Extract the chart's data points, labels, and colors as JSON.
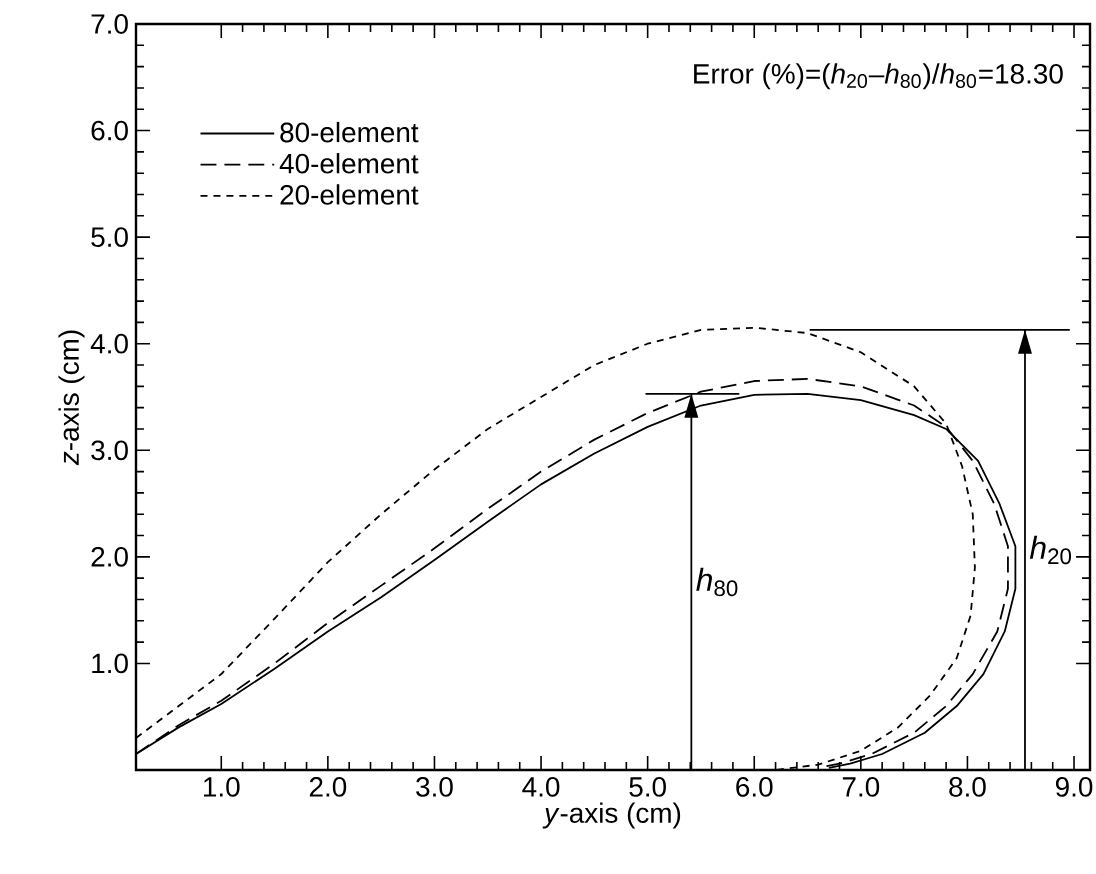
{
  "chart_data": {
    "type": "line",
    "xlabel": "*y*-axis (cm)",
    "ylabel": "*z*-axis (cm)",
    "xlim": [
      0.2,
      9.15
    ],
    "ylim": [
      0,
      7.0
    ],
    "xticks": [
      {
        "value": 1,
        "label": "1.0"
      },
      {
        "value": 2,
        "label": "2.0"
      },
      {
        "value": 3,
        "label": "3.0"
      },
      {
        "value": 4,
        "label": "4.0"
      },
      {
        "value": 5,
        "label": "5.0"
      },
      {
        "value": 6,
        "label": "6.0"
      },
      {
        "value": 7,
        "label": "7.0"
      },
      {
        "value": 8,
        "label": "8.0"
      },
      {
        "value": 9,
        "label": "9.0"
      }
    ],
    "yticks": [
      {
        "value": 1,
        "label": "1.0"
      },
      {
        "value": 2,
        "label": "2.0"
      },
      {
        "value": 3,
        "label": "3.0"
      },
      {
        "value": 4,
        "label": "4.0"
      },
      {
        "value": 5,
        "label": "5.0"
      },
      {
        "value": 6,
        "label": "6.0"
      },
      {
        "value": 7,
        "label": "7.0"
      }
    ],
    "legend": "top left",
    "marker": "none",
    "series": [
      {
        "name": "80-element",
        "color": "#000000",
        "line_style": "solid",
        "x": [
          0.2,
          0.6,
          1.0,
          1.5,
          2.0,
          2.5,
          3.0,
          3.5,
          4.0,
          4.5,
          5.0,
          5.5,
          6.0,
          6.5,
          7.0,
          7.5,
          7.8,
          8.1,
          8.3,
          8.45,
          8.45,
          8.35,
          8.15,
          7.9,
          7.6,
          7.2,
          6.9,
          6.7
        ],
        "values": [
          0.15,
          0.4,
          0.62,
          0.95,
          1.3,
          1.62,
          1.97,
          2.33,
          2.68,
          2.97,
          3.22,
          3.42,
          3.52,
          3.53,
          3.47,
          3.33,
          3.2,
          2.9,
          2.5,
          2.1,
          1.7,
          1.3,
          0.9,
          0.6,
          0.35,
          0.15,
          0.06,
          0.02
        ]
      },
      {
        "name": "40-element",
        "color": "#000000",
        "line_style": "dashed",
        "x": [
          0.2,
          0.6,
          1.0,
          1.5,
          2.0,
          2.5,
          3.0,
          3.5,
          4.0,
          4.5,
          5.0,
          5.5,
          6.0,
          6.5,
          7.0,
          7.5,
          7.8,
          8.05,
          8.25,
          8.38,
          8.38,
          8.28,
          8.05,
          7.8,
          7.5,
          7.1,
          6.8,
          6.6
        ],
        "values": [
          0.15,
          0.42,
          0.65,
          1.0,
          1.38,
          1.73,
          2.08,
          2.45,
          2.8,
          3.1,
          3.35,
          3.55,
          3.65,
          3.67,
          3.6,
          3.42,
          3.22,
          2.9,
          2.5,
          2.1,
          1.7,
          1.3,
          0.9,
          0.6,
          0.35,
          0.15,
          0.06,
          0.02
        ]
      },
      {
        "name": "20-element",
        "color": "#000000",
        "line_style": "dotted",
        "x": [
          0.2,
          0.6,
          1.0,
          1.5,
          2.0,
          2.5,
          3.0,
          3.5,
          4.0,
          4.5,
          5.0,
          5.5,
          6.0,
          6.5,
          7.0,
          7.5,
          7.8,
          7.95,
          8.05,
          8.07,
          8.03,
          7.9,
          7.65,
          7.35,
          7.0,
          6.6,
          6.2
        ],
        "values": [
          0.3,
          0.6,
          0.9,
          1.42,
          1.95,
          2.4,
          2.82,
          3.2,
          3.5,
          3.8,
          4.0,
          4.13,
          4.15,
          4.1,
          3.92,
          3.6,
          3.25,
          2.85,
          2.4,
          1.9,
          1.45,
          1.05,
          0.7,
          0.4,
          0.18,
          0.05,
          0.0
        ]
      },
      {
        "color": "#000000",
        "line_style": "solid",
        "x": [
          4.98,
          5.86
        ],
        "values": [
          3.53,
          3.53
        ]
      },
      {
        "color": "#000000",
        "line_style": "solid",
        "x": [
          6.52,
          8.96
        ],
        "values": [
          4.13,
          4.13
        ]
      },
      {
        "color": "#000000",
        "line_style": "solid",
        "x": [
          5.41,
          5.41
        ],
        "values": [
          0,
          3.53
        ]
      },
      {
        "color": "#000000",
        "line_style": "solid",
        "x": [
          8.54,
          8.54
        ],
        "values": [
          0,
          4.13
        ]
      }
    ],
    "annotations": [
      "Error (%)=(*h*$_{20}$–*h*$_{80}$)/*h*$_{80}$=18.30",
      "*h*$_{80}$",
      "*h*$_{20}$"
    ]
  }
}
